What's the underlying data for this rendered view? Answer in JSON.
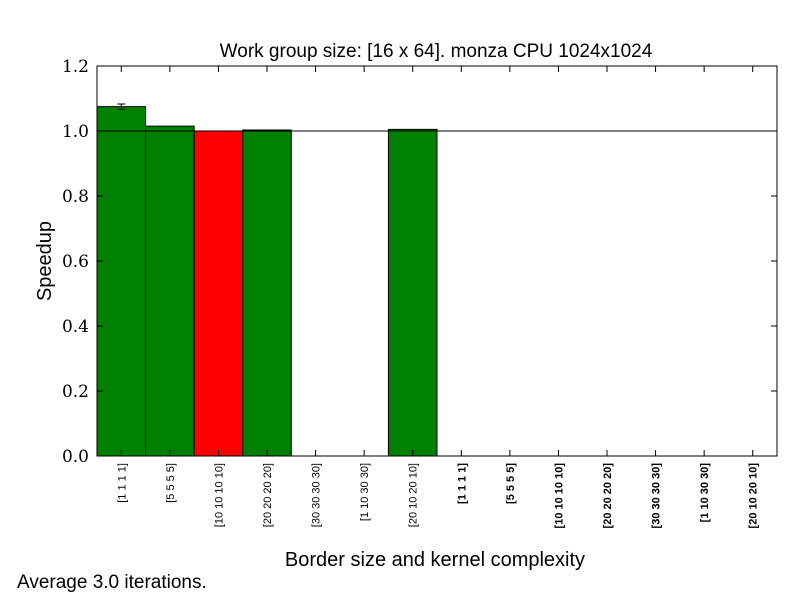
{
  "chart_data": {
    "type": "bar",
    "title": "Work group size: [16 x 64]. monza CPU 1024x1024",
    "xlabel": "Border size and kernel complexity",
    "ylabel": "Speedup",
    "ylim": [
      0.0,
      1.2
    ],
    "yticks": [
      "0.0",
      "0.2",
      "0.4",
      "0.6",
      "0.8",
      "1.0",
      "1.2"
    ],
    "reference_line": 1.0,
    "grid": false,
    "categories": [
      {
        "label": "[1 1 1 1]",
        "bold": false
      },
      {
        "label": "[5 5 5 5]",
        "bold": false
      },
      {
        "label": "[10 10 10 10]",
        "bold": false
      },
      {
        "label": "[20 20 20 20]",
        "bold": false
      },
      {
        "label": "[30 30 30 30]",
        "bold": false
      },
      {
        "label": "[1 10 30 30]",
        "bold": false
      },
      {
        "label": "[20 10 20 10]",
        "bold": false
      },
      {
        "label": "[1 1 1 1]",
        "bold": true
      },
      {
        "label": "[5 5 5 5]",
        "bold": true
      },
      {
        "label": "[10 10 10 10]",
        "bold": true
      },
      {
        "label": "[20 20 20 20]",
        "bold": true
      },
      {
        "label": "[30 30 30 30]",
        "bold": true
      },
      {
        "label": "[1 10 30 30]",
        "bold": true
      },
      {
        "label": "[20 10 20 10]",
        "bold": true
      }
    ],
    "values": [
      1.075,
      1.015,
      1.0,
      1.003,
      null,
      null,
      1.005,
      null,
      null,
      null,
      null,
      null,
      null,
      null
    ],
    "errors": [
      0.008,
      0,
      0,
      0,
      null,
      null,
      0,
      null,
      null,
      null,
      null,
      null,
      null,
      null
    ],
    "bar_colors": [
      "#008000",
      "#008000",
      "#ff0000",
      "#008000",
      null,
      null,
      "#008000",
      null,
      null,
      null,
      null,
      null,
      null,
      null
    ]
  },
  "footer_text": "Average 3.0 iterations."
}
